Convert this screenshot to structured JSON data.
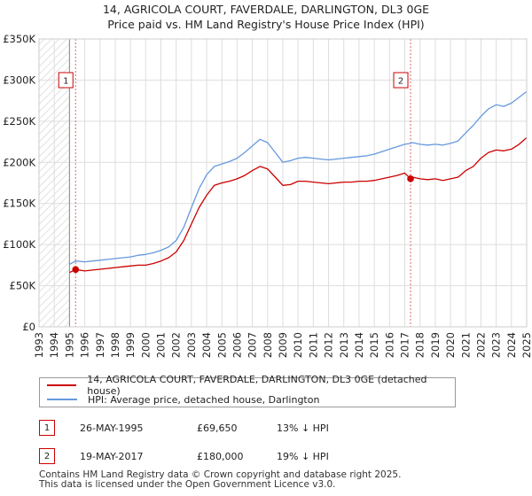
{
  "chart_data": {
    "type": "line",
    "title_line1": "14, AGRICOLA COURT, FAVERDALE, DARLINGTON, DL3 0GE",
    "title_line2": "Price paid vs. HM Land Registry's House Price Index (HPI)",
    "y_ticks": [
      0,
      50000,
      100000,
      150000,
      200000,
      250000,
      300000,
      350000
    ],
    "y_tick_labels": [
      "£0",
      "£50K",
      "£100K",
      "£150K",
      "£200K",
      "£250K",
      "£300K",
      "£350K"
    ],
    "x_tick_labels": [
      "1993",
      "1994",
      "1995",
      "1996",
      "1997",
      "1998",
      "1999",
      "2000",
      "2001",
      "2002",
      "2003",
      "2004",
      "2005",
      "2006",
      "2007",
      "2008",
      "2009",
      "2010",
      "2011",
      "2012",
      "2013",
      "2014",
      "2015",
      "2016",
      "2017",
      "2018",
      "2019",
      "2020",
      "2021",
      "2022",
      "2023",
      "2024",
      "2025"
    ],
    "xlim": [
      1993,
      2025
    ],
    "ylim": [
      0,
      350000
    ],
    "grid": true,
    "hatched_before": 1995.0,
    "series": [
      {
        "name": "14, AGRICOLA COURT, FAVERDALE, DARLINGTON, DL3 0GE (detached house)",
        "color": "#cc0000",
        "x": [
          1995.0,
          1995.4,
          1996.0,
          1996.5,
          1997.0,
          1997.5,
          1998.0,
          1998.5,
          1999.0,
          1999.5,
          2000.0,
          2000.5,
          2001.0,
          2001.5,
          2002.0,
          2002.5,
          2003.0,
          2003.5,
          2004.0,
          2004.5,
          2005.0,
          2005.5,
          2006.0,
          2006.5,
          2007.0,
          2007.5,
          2008.0,
          2008.5,
          2009.0,
          2009.5,
          2010.0,
          2010.5,
          2011.0,
          2011.5,
          2012.0,
          2012.5,
          2013.0,
          2013.5,
          2014.0,
          2014.5,
          2015.0,
          2015.5,
          2016.0,
          2016.5,
          2017.0,
          2017.38,
          2017.5,
          2018.0,
          2018.5,
          2019.0,
          2019.5,
          2020.0,
          2020.5,
          2021.0,
          2021.5,
          2022.0,
          2022.5,
          2023.0,
          2023.5,
          2024.0,
          2024.5,
          2025.0
        ],
        "y": [
          66000,
          69650,
          68000,
          69000,
          70000,
          71000,
          72000,
          73000,
          74000,
          75000,
          75000,
          77000,
          80000,
          84000,
          91000,
          105000,
          125000,
          145000,
          160000,
          172000,
          175000,
          177000,
          180000,
          184000,
          190000,
          195000,
          192000,
          182000,
          172000,
          173000,
          177000,
          177000,
          176000,
          175000,
          174000,
          175000,
          176000,
          176000,
          177000,
          177000,
          178000,
          180000,
          182000,
          184000,
          187000,
          180000,
          182000,
          180000,
          179000,
          180000,
          178000,
          180000,
          182000,
          190000,
          195000,
          205000,
          212000,
          215000,
          214000,
          216000,
          222000,
          230000
        ]
      },
      {
        "name": "HPI: Average price, detached house, Darlington",
        "color": "#6699dd",
        "x": [
          1995.0,
          1995.4,
          1996.0,
          1996.5,
          1997.0,
          1997.5,
          1998.0,
          1998.5,
          1999.0,
          1999.5,
          2000.0,
          2000.5,
          2001.0,
          2001.5,
          2002.0,
          2002.5,
          2003.0,
          2003.5,
          2004.0,
          2004.5,
          2005.0,
          2005.5,
          2006.0,
          2006.5,
          2007.0,
          2007.5,
          2008.0,
          2008.5,
          2009.0,
          2009.5,
          2010.0,
          2010.5,
          2011.0,
          2011.5,
          2012.0,
          2012.5,
          2013.0,
          2013.5,
          2014.0,
          2014.5,
          2015.0,
          2015.5,
          2016.0,
          2016.5,
          2017.0,
          2017.38,
          2017.5,
          2018.0,
          2018.5,
          2019.0,
          2019.5,
          2020.0,
          2020.5,
          2021.0,
          2021.5,
          2022.0,
          2022.5,
          2023.0,
          2023.5,
          2024.0,
          2024.5,
          2025.0
        ],
        "y": [
          76000,
          80000,
          79000,
          80000,
          81000,
          82000,
          83000,
          84000,
          85000,
          87000,
          88000,
          90000,
          93000,
          97000,
          105000,
          121000,
          145000,
          168000,
          185000,
          195000,
          198000,
          201000,
          205000,
          212000,
          220000,
          228000,
          224000,
          212000,
          200000,
          202000,
          205000,
          206000,
          205000,
          204000,
          203000,
          204000,
          205000,
          206000,
          207000,
          208000,
          210000,
          213000,
          216000,
          219000,
          222000,
          223000,
          224000,
          222000,
          221000,
          222000,
          221000,
          223000,
          226000,
          236000,
          245000,
          256000,
          265000,
          270000,
          268000,
          272000,
          279000,
          286000
        ]
      }
    ],
    "markers": [
      {
        "label": "1",
        "x": 1995.4,
        "y": 69650
      },
      {
        "label": "2",
        "x": 2017.38,
        "y": 180000
      }
    ]
  },
  "legend": {
    "items": [
      {
        "label": "14, AGRICOLA COURT, FAVERDALE, DARLINGTON, DL3 0GE (detached house)",
        "color": "#cc0000"
      },
      {
        "label": "HPI: Average price, detached house, Darlington",
        "color": "#6699dd"
      }
    ]
  },
  "sales": [
    {
      "num": "1",
      "date": "26-MAY-1995",
      "price": "£69,650",
      "hpi": "13% ↓ HPI"
    },
    {
      "num": "2",
      "date": "19-MAY-2017",
      "price": "£180,000",
      "hpi": "19% ↓ HPI"
    }
  ],
  "footer": {
    "line1": "Contains HM Land Registry data © Crown copyright and database right 2025.",
    "line2": "This data is licensed under the Open Government Licence v3.0."
  }
}
